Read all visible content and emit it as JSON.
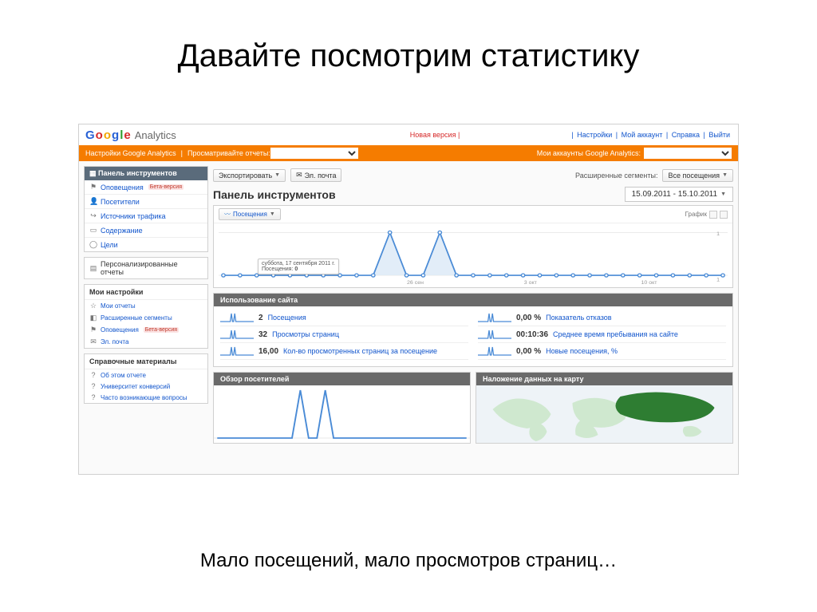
{
  "slide": {
    "title": "Давайте посмотрим статистику",
    "caption": "Мало посещений, мало просмотров страниц…"
  },
  "colors": {
    "orange": "#f57c00",
    "sidebar_hd": "#5a6b7b",
    "section_bar": "#6a6a6a",
    "link": "#1155cc",
    "chart_line": "#4a8bd6",
    "chart_fill": "#dbe9f6",
    "grid": "#e8e8e8",
    "map_land": "#cfe8cf",
    "map_highlight": "#2e7d32"
  },
  "logo": {
    "text": "Google",
    "sub": "Analytics"
  },
  "top": {
    "new_version": "Новая версия |",
    "links": [
      "Настройки",
      "Мой аккаунт",
      "Справка",
      "Выйти"
    ]
  },
  "orange": {
    "left1": "Настройки Google Analytics",
    "left2": "Просматривайте отчеты:",
    "select_placeholder": "",
    "right_label": "Мои аккаунты Google Analytics:"
  },
  "sidebar": {
    "panel1": {
      "header": "Панель инструментов",
      "items": [
        {
          "icon": "⚑",
          "label": "Оповещения",
          "badge": "Бета-версия"
        },
        {
          "icon": "👤",
          "label": "Посетители",
          "badge": ""
        },
        {
          "icon": "↪",
          "label": "Источники трафика",
          "badge": ""
        },
        {
          "icon": "▭",
          "label": "Содержание",
          "badge": ""
        },
        {
          "icon": "◯",
          "label": "Цели",
          "badge": ""
        }
      ]
    },
    "panel_personal": {
      "label": "Персонализированные отчеты"
    },
    "panel2": {
      "header": "Мои настройки",
      "items": [
        {
          "icon": "☆",
          "label": "Мои отчеты",
          "badge": ""
        },
        {
          "icon": "◧",
          "label": "Расширенные сегменты",
          "badge": ""
        },
        {
          "icon": "⚑",
          "label": "Оповещения",
          "badge": "Бета-версия"
        },
        {
          "icon": "✉",
          "label": "Эл. почта",
          "badge": ""
        }
      ]
    },
    "panel3": {
      "header": "Справочные материалы",
      "items": [
        {
          "icon": "?",
          "label": "Об этом отчете"
        },
        {
          "icon": "?",
          "label": "Университет конверсий"
        },
        {
          "icon": "?",
          "label": "Часто возникающие вопросы"
        }
      ]
    }
  },
  "toolbar": {
    "export": "Экспортировать",
    "email": "Эл. почта",
    "adv_segments": "Расширенные сегменты:",
    "all_visits": "Все посещения"
  },
  "main_title": "Панель инструментов",
  "date_range": "15.09.2011 - 15.10.2011",
  "chart": {
    "tab_label": "Посещения",
    "graph_label": "График",
    "type": "line",
    "ylim": [
      0,
      1
    ],
    "points": [
      0,
      0,
      0,
      0,
      0,
      0,
      0,
      0,
      0,
      0,
      1,
      0,
      0,
      1,
      0,
      0,
      0,
      0,
      0,
      0,
      0,
      0,
      0,
      0,
      0,
      0,
      0,
      0,
      0,
      0,
      0
    ],
    "x_labels_sample": [
      "26 сен",
      "3 окт",
      "10 окт"
    ],
    "tooltip_date": "суббота, 17 сентября 2011 г.",
    "tooltip_metric": "Посещения:",
    "tooltip_value": "0"
  },
  "usage_header": "Использование сайта",
  "metrics": [
    {
      "value": "2",
      "label": "Посещения"
    },
    {
      "value": "0,00 %",
      "label": "Показатель отказов"
    },
    {
      "value": "32",
      "label": "Просмотры страниц"
    },
    {
      "value": "00:10:36",
      "label": "Среднее время пребывания на сайте"
    },
    {
      "value": "16,00",
      "label": "Кол-во просмотренных страниц за посещение"
    },
    {
      "value": "0,00 %",
      "label": "Новые посещения, %"
    }
  ],
  "bottom": {
    "left_header": "Обзор посетителей",
    "right_header": "Наложение данных на карту"
  }
}
